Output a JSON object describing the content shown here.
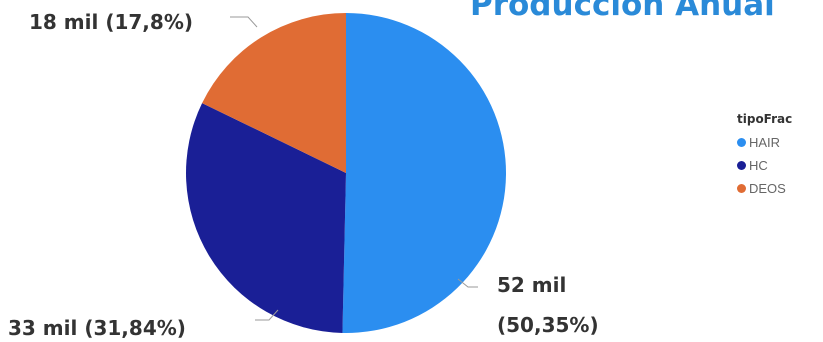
{
  "title": "Producción Anual",
  "chart_data": {
    "type": "pie",
    "legend_title": "tipoFrac",
    "legend_position": "right",
    "slices": [
      {
        "name": "HAIR",
        "value": 52,
        "percent": 50.35,
        "value_label": "52 mil",
        "percent_label": "(50,35%)",
        "color": "#2b8ef0"
      },
      {
        "name": "HC",
        "value": 33,
        "percent": 31.84,
        "value_label": "33 mil",
        "percent_label": "(31,84%)",
        "color": "#1a1f96"
      },
      {
        "name": "DEOS",
        "value": 18,
        "percent": 17.8,
        "value_label": "18 mil",
        "percent_label": "(17,8%)",
        "color": "#e06c34"
      }
    ]
  }
}
